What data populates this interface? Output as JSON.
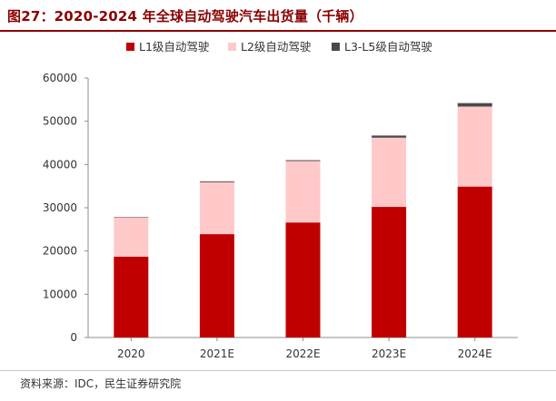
{
  "title": "图27：2020-2024 年全球自动驾驶汽车出货量（千辆）",
  "source": "资料来源：IDC，民生证券研究院",
  "chart_data": {
    "type": "bar",
    "stacked": true,
    "categories": [
      "2020",
      "2021E",
      "2022E",
      "2023E",
      "2024E"
    ],
    "series": [
      {
        "name": "L1级自动驾驶",
        "color": "#c00000",
        "values": [
          18700,
          23900,
          26600,
          30200,
          34900
        ]
      },
      {
        "name": "L2级自动驾驶",
        "color": "#ffc9c9",
        "values": [
          9100,
          12000,
          14200,
          16000,
          18500
        ]
      },
      {
        "name": "L3-L5级自动驾驶",
        "color": "#4a4a4a",
        "values": [
          100,
          200,
          200,
          500,
          800
        ]
      }
    ],
    "ylim": [
      0,
      60000
    ],
    "yticks": [
      0,
      10000,
      20000,
      30000,
      40000,
      50000,
      60000
    ],
    "grid": false,
    "legend_position": "top-center"
  }
}
